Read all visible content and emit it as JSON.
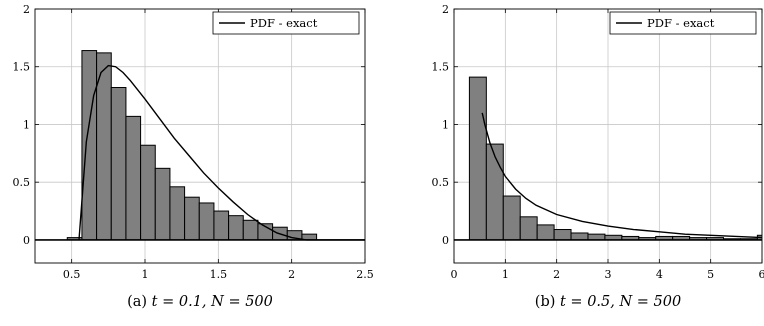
{
  "chart_data": [
    {
      "type": "bar",
      "caption_prefix": "(a)",
      "caption_math": "t = 0.1, N = 500",
      "xlim": [
        0.25,
        2.5
      ],
      "ylim": [
        -0.2,
        2
      ],
      "xticks": [
        0.5,
        1,
        1.5,
        2,
        2.5
      ],
      "xtick_labels": [
        "0.5",
        "1",
        "1.5",
        "2",
        "2.5"
      ],
      "yticks": [
        0,
        0.5,
        1,
        1.5,
        2
      ],
      "ytick_labels": [
        "0",
        "0.5",
        "1",
        "1.5",
        "2"
      ],
      "grid": true,
      "legend_position": "top-right",
      "histogram": {
        "bin_edges": [
          0.47,
          0.57,
          0.67,
          0.77,
          0.87,
          0.97,
          1.07,
          1.17,
          1.27,
          1.37,
          1.47,
          1.57,
          1.67,
          1.77,
          1.87,
          1.97,
          2.07,
          2.17
        ],
        "densities": [
          0.02,
          1.64,
          1.62,
          1.32,
          1.07,
          0.82,
          0.62,
          0.46,
          0.37,
          0.32,
          0.25,
          0.21,
          0.17,
          0.14,
          0.11,
          0.08,
          0.05
        ]
      },
      "series": [
        {
          "name": "PDF - exact",
          "x": [
            0.55,
            0.6,
            0.65,
            0.7,
            0.75,
            0.8,
            0.85,
            0.9,
            0.95,
            1.0,
            1.1,
            1.2,
            1.3,
            1.4,
            1.5,
            1.6,
            1.7,
            1.8,
            1.9,
            2.0,
            2.1,
            2.2,
            2.3,
            2.4,
            2.5
          ],
          "y": [
            0,
            0.85,
            1.25,
            1.45,
            1.51,
            1.5,
            1.45,
            1.38,
            1.3,
            1.22,
            1.05,
            0.88,
            0.73,
            0.58,
            0.45,
            0.33,
            0.22,
            0.13,
            0.06,
            0.02,
            0,
            0,
            0,
            0,
            0
          ]
        }
      ]
    },
    {
      "type": "bar",
      "caption_prefix": "(b)",
      "caption_math": "t = 0.5, N = 500",
      "xlim": [
        0,
        6
      ],
      "ylim": [
        -0.2,
        2
      ],
      "xticks": [
        0,
        1,
        2,
        3,
        4,
        5,
        6
      ],
      "xtick_labels": [
        "0",
        "1",
        "2",
        "3",
        "4",
        "5",
        "6"
      ],
      "yticks": [
        0,
        0.5,
        1,
        1.5,
        2
      ],
      "ytick_labels": [
        "0",
        "0.5",
        "1",
        "1.5",
        "2"
      ],
      "grid": true,
      "legend_position": "top-right",
      "histogram": {
        "bin_edges": [
          0.3,
          0.63,
          0.96,
          1.29,
          1.62,
          1.95,
          2.28,
          2.61,
          2.94,
          3.27,
          3.6,
          3.93,
          4.26,
          4.59,
          4.92,
          5.25,
          5.58,
          5.91,
          6.24
        ],
        "densities": [
          1.41,
          0.83,
          0.38,
          0.2,
          0.13,
          0.09,
          0.06,
          0.05,
          0.04,
          0.03,
          0.02,
          0.03,
          0.03,
          0.02,
          0.02,
          0.01,
          0.01,
          0.04
        ]
      },
      "series": [
        {
          "name": "PDF - exact",
          "x": [
            0.55,
            0.6,
            0.7,
            0.8,
            0.9,
            1.0,
            1.2,
            1.4,
            1.6,
            1.8,
            2.0,
            2.5,
            3.0,
            3.5,
            4.0,
            4.5,
            5.0,
            5.5,
            6.0
          ],
          "y": [
            1.1,
            1.0,
            0.84,
            0.72,
            0.63,
            0.55,
            0.44,
            0.36,
            0.3,
            0.26,
            0.22,
            0.16,
            0.12,
            0.09,
            0.07,
            0.05,
            0.04,
            0.03,
            0.02
          ]
        }
      ]
    }
  ]
}
